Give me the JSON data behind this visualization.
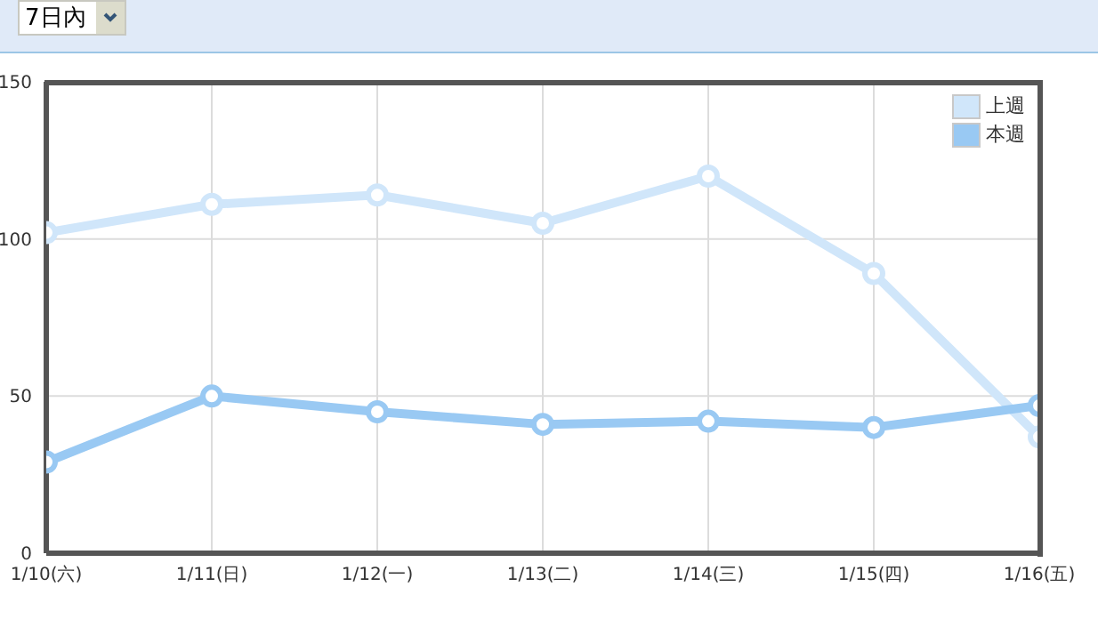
{
  "chart_data": {
    "type": "line",
    "annotations": [
      "7日內"
    ],
    "categories": [
      "1/10(六)",
      "1/11(日)",
      "1/12(一)",
      "1/13(二)",
      "1/14(三)",
      "1/15(四)",
      "1/16(五)"
    ],
    "series": [
      {
        "name": "上週",
        "color": "#d0e6fa",
        "values": [
          102,
          111,
          114,
          105,
          120,
          89,
          37
        ]
      },
      {
        "name": "本週",
        "color": "#99c9f3",
        "values": [
          29,
          50,
          45,
          41,
          42,
          40,
          47
        ]
      }
    ],
    "ylim": [
      0,
      150
    ],
    "yticks": [
      0,
      50,
      100,
      150
    ],
    "grid": true,
    "legend": "top right",
    "marker": "circle",
    "line_style": "solid"
  }
}
